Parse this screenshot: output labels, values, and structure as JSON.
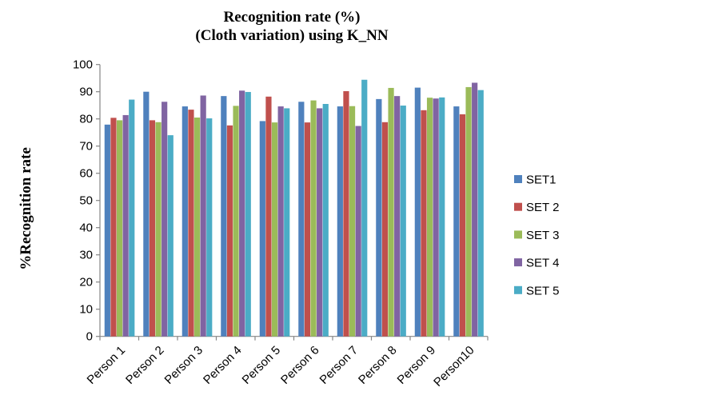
{
  "chart_data": {
    "type": "bar",
    "title": [
      "Recognition rate (%)",
      "(Cloth variation) using K_NN"
    ],
    "xlabel": "",
    "ylabel": "%Recognition rate",
    "ylim": [
      0,
      100
    ],
    "yticks": [
      0,
      10,
      20,
      30,
      40,
      50,
      60,
      70,
      80,
      90,
      100
    ],
    "grid": false,
    "legend_position": "right",
    "categories": [
      "Person 1",
      "Person 2",
      "Person 3",
      "Person 4",
      "Person 5",
      "Person 6",
      "Person 7",
      "Person 8",
      "Person 9",
      "Person10"
    ],
    "series": [
      {
        "name": "SET1",
        "color": "#4F81BD",
        "values": [
          77.9,
          90.0,
          84.6,
          88.4,
          79.2,
          86.3,
          84.6,
          87.3,
          91.5,
          84.6
        ]
      },
      {
        "name": "SET 2",
        "color": "#C0504D",
        "values": [
          80.4,
          79.5,
          83.4,
          77.6,
          88.2,
          78.7,
          90.2,
          78.8,
          83.2,
          81.7
        ]
      },
      {
        "name": "SET 3",
        "color": "#9BBB59",
        "values": [
          79.5,
          78.8,
          80.5,
          84.8,
          78.7,
          86.8,
          84.7,
          91.4,
          87.8,
          91.7
        ]
      },
      {
        "name": "SET 4",
        "color": "#8064A2",
        "values": [
          81.4,
          86.3,
          88.6,
          90.4,
          84.6,
          83.9,
          77.4,
          88.4,
          87.5,
          93.3
        ]
      },
      {
        "name": "SET 5",
        "color": "#4BACC6",
        "values": [
          87.1,
          74.0,
          80.2,
          89.9,
          83.9,
          85.5,
          94.4,
          84.9,
          87.9,
          90.6
        ]
      }
    ]
  }
}
